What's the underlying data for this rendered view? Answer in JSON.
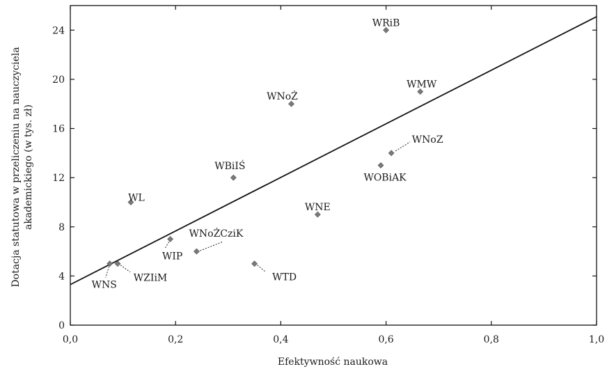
{
  "chart_data": {
    "type": "scatter",
    "xlabel": "Efektywność naukowa",
    "ylabel": [
      "Dotacja statutowa w przeliczeniu na nauczyciela",
      "akademickiego (w tys. zł)"
    ],
    "xlim": [
      0.0,
      1.0
    ],
    "ylim": [
      0,
      26
    ],
    "x_ticks": [
      "0,0",
      "0,2",
      "0,4",
      "0,6",
      "0,8",
      "1,0"
    ],
    "y_ticks": [
      "0",
      "4",
      "8",
      "12",
      "16",
      "20",
      "24"
    ],
    "grid": false,
    "colors": {
      "points": "#7a7a7a",
      "line": "#111111",
      "axis": "#111111"
    },
    "points": [
      {
        "label": "WRiB",
        "x": 0.6,
        "y": 24.0
      },
      {
        "label": "WMW",
        "x": 0.665,
        "y": 19.0
      },
      {
        "label": "WNoŻ",
        "x": 0.42,
        "y": 18.0
      },
      {
        "label": "WNoZ",
        "x": 0.61,
        "y": 14.0
      },
      {
        "label": "WOBiAK",
        "x": 0.59,
        "y": 13.0
      },
      {
        "label": "WBiIŚ",
        "x": 0.31,
        "y": 12.0
      },
      {
        "label": "WL",
        "x": 0.115,
        "y": 10.0
      },
      {
        "label": "WNE",
        "x": 0.47,
        "y": 9.0
      },
      {
        "label": "WIP",
        "x": 0.19,
        "y": 7.0
      },
      {
        "label": "WNoŻCziK",
        "x": 0.24,
        "y": 6.0
      },
      {
        "label": "WTD",
        "x": 0.35,
        "y": 5.0
      },
      {
        "label": "WNS",
        "x": 0.075,
        "y": 5.0
      },
      {
        "label": "WZIiM",
        "x": 0.09,
        "y": 5.0
      }
    ],
    "trendline": {
      "x": [
        0.0,
        1.0
      ],
      "y": [
        3.3,
        25.1
      ]
    }
  }
}
